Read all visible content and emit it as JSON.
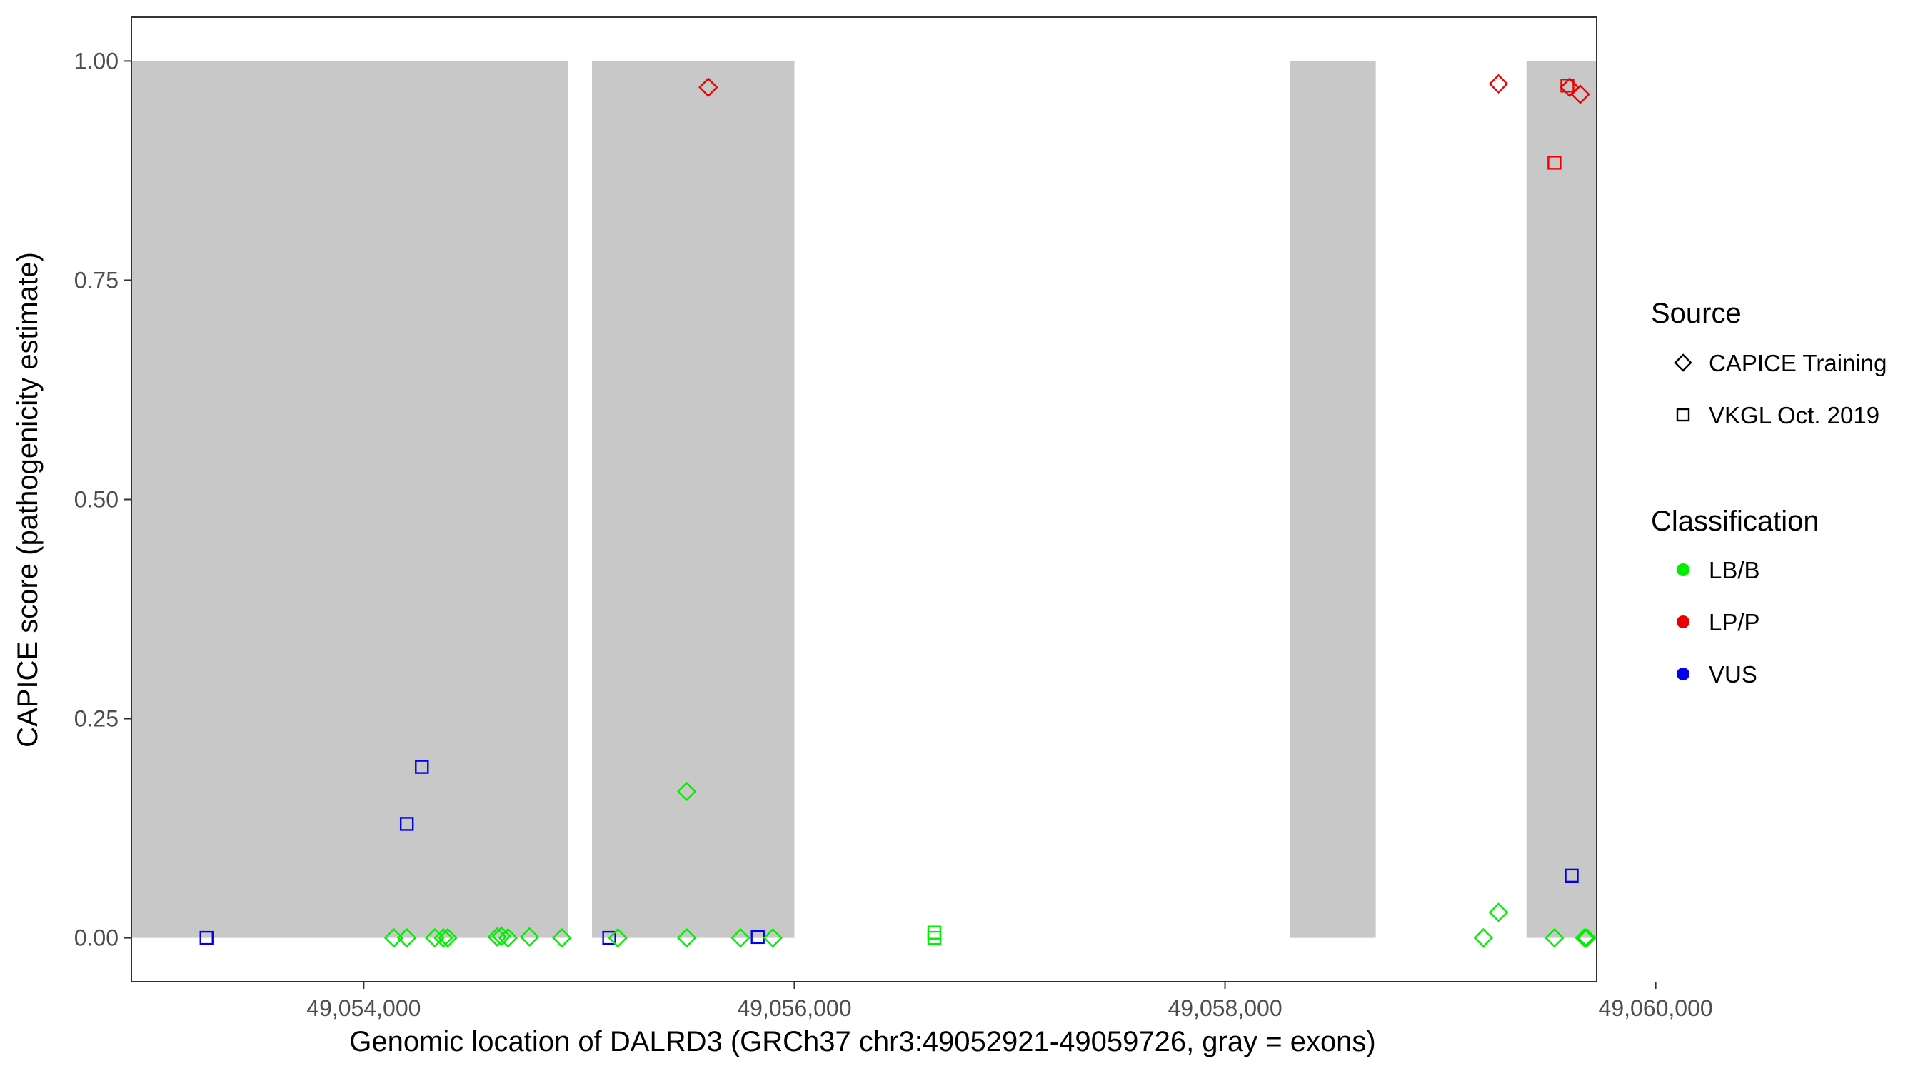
{
  "chart_data": {
    "type": "scatter",
    "title": "",
    "xlabel": "Genomic location of DALRD3 (GRCh37 chr3:49052921-49059726, gray = exons)",
    "ylabel": "CAPICE score (pathogenicity estimate)",
    "xlim": [
      52921,
      59726
    ],
    "xlim_note": "offset from 49,000,000",
    "x_ticks": [
      54000,
      56000,
      58000,
      60000
    ],
    "x_tick_labels": [
      "49,054,000",
      "49,056,000",
      "49,058,000",
      "49,060,000"
    ],
    "ylim": [
      -0.05,
      1.05
    ],
    "y_ticks": [
      0.0,
      0.25,
      0.5,
      0.75,
      1.0
    ],
    "y_tick_labels": [
      "0.00",
      "0.25",
      "0.50",
      "0.75",
      "1.00"
    ],
    "grid": false,
    "exons": [
      [
        49052921,
        49054950
      ],
      [
        49055060,
        49056000
      ],
      [
        49058300,
        49058700
      ],
      [
        49059400,
        49059726
      ]
    ],
    "legend": {
      "placement": "right",
      "source_title": "Source",
      "source_items": [
        {
          "label": "CAPICE Training",
          "shape": "diamond"
        },
        {
          "label": "VKGL Oct. 2019",
          "shape": "square"
        }
      ],
      "classification_title": "Classification",
      "classification_items": [
        {
          "label": "LB/B",
          "color": "#00ee00"
        },
        {
          "label": "LP/P",
          "color": "#ee0000"
        },
        {
          "label": "VUS",
          "color": "#0000ee"
        }
      ]
    },
    "colors": {
      "LB/B": "#00ee00",
      "LP/P": "#ee0000",
      "VUS": "#0000ee"
    },
    "points": [
      {
        "x": 49053270,
        "y": 0.0,
        "source": "VKGL Oct. 2019",
        "class": "VUS"
      },
      {
        "x": 49054200,
        "y": 0.13,
        "source": "VKGL Oct. 2019",
        "class": "VUS"
      },
      {
        "x": 49054270,
        "y": 0.195,
        "source": "VKGL Oct. 2019",
        "class": "VUS"
      },
      {
        "x": 49055140,
        "y": 0.0,
        "source": "VKGL Oct. 2019",
        "class": "VUS"
      },
      {
        "x": 49055830,
        "y": 0.001,
        "source": "VKGL Oct. 2019",
        "class": "VUS"
      },
      {
        "x": 49059610,
        "y": 0.071,
        "source": "VKGL Oct. 2019",
        "class": "VUS"
      },
      {
        "x": 49059530,
        "y": 0.884,
        "source": "VKGL Oct. 2019",
        "class": "LP/P"
      },
      {
        "x": 49059590,
        "y": 0.972,
        "source": "VKGL Oct. 2019",
        "class": "LP/P"
      },
      {
        "x": 49056650,
        "y": 0.0,
        "source": "VKGL Oct. 2019",
        "class": "LB/B"
      },
      {
        "x": 49056650,
        "y": 0.006,
        "source": "VKGL Oct. 2019",
        "class": "LB/B"
      },
      {
        "x": 49054140,
        "y": 0.0,
        "source": "CAPICE Training",
        "class": "LB/B"
      },
      {
        "x": 49054200,
        "y": 0.0,
        "source": "CAPICE Training",
        "class": "LB/B"
      },
      {
        "x": 49054330,
        "y": 0.0,
        "source": "CAPICE Training",
        "class": "LB/B"
      },
      {
        "x": 49054370,
        "y": 0.0,
        "source": "CAPICE Training",
        "class": "LB/B"
      },
      {
        "x": 49054390,
        "y": 0.0,
        "source": "CAPICE Training",
        "class": "LB/B"
      },
      {
        "x": 49054620,
        "y": 0.001,
        "source": "CAPICE Training",
        "class": "LB/B"
      },
      {
        "x": 49054640,
        "y": 0.002,
        "source": "CAPICE Training",
        "class": "LB/B"
      },
      {
        "x": 49054670,
        "y": 0.0,
        "source": "CAPICE Training",
        "class": "LB/B"
      },
      {
        "x": 49054770,
        "y": 0.001,
        "source": "CAPICE Training",
        "class": "LB/B"
      },
      {
        "x": 49054920,
        "y": 0.0,
        "source": "CAPICE Training",
        "class": "LB/B"
      },
      {
        "x": 49055180,
        "y": 0.0,
        "source": "CAPICE Training",
        "class": "LB/B"
      },
      {
        "x": 49055500,
        "y": 0.167,
        "source": "CAPICE Training",
        "class": "LB/B"
      },
      {
        "x": 49055500,
        "y": 0.0,
        "source": "CAPICE Training",
        "class": "LB/B"
      },
      {
        "x": 49055750,
        "y": 0.0,
        "source": "CAPICE Training",
        "class": "LB/B"
      },
      {
        "x": 49055900,
        "y": 0.0,
        "source": "CAPICE Training",
        "class": "LB/B"
      },
      {
        "x": 49059200,
        "y": 0.0,
        "source": "CAPICE Training",
        "class": "LB/B"
      },
      {
        "x": 49059270,
        "y": 0.029,
        "source": "CAPICE Training",
        "class": "LB/B"
      },
      {
        "x": 49059530,
        "y": 0.0,
        "source": "CAPICE Training",
        "class": "LB/B"
      },
      {
        "x": 49059670,
        "y": 0.0,
        "source": "CAPICE Training",
        "class": "LB/B"
      },
      {
        "x": 49059680,
        "y": 0.0,
        "source": "CAPICE Training",
        "class": "LB/B"
      },
      {
        "x": 49055600,
        "y": 0.97,
        "source": "CAPICE Training",
        "class": "LP/P"
      },
      {
        "x": 49059270,
        "y": 0.974,
        "source": "CAPICE Training",
        "class": "LP/P"
      },
      {
        "x": 49059600,
        "y": 0.97,
        "source": "CAPICE Training",
        "class": "LP/P"
      },
      {
        "x": 49059650,
        "y": 0.962,
        "source": "CAPICE Training",
        "class": "LP/P"
      }
    ]
  }
}
